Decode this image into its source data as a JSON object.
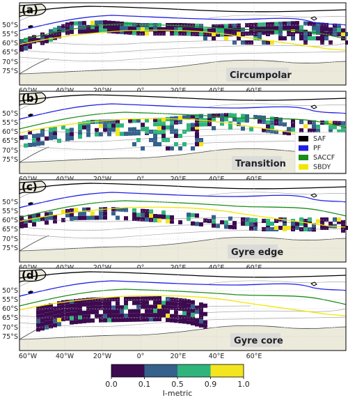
{
  "xticks": [
    "60°W",
    "40°W",
    "20°W",
    "0°",
    "20°E",
    "40°E",
    "60°E"
  ],
  "yticks": [
    "50°S",
    "55°S",
    "60°S",
    "65°S",
    "70°S",
    "75°S"
  ],
  "panels": [
    {
      "letter": "(a)",
      "region": "Circumpolar"
    },
    {
      "letter": "(b)",
      "region": "Transition"
    },
    {
      "letter": "(c)",
      "region": "Gyre edge"
    },
    {
      "letter": "(d)",
      "region": "Gyre core"
    }
  ],
  "legend": [
    {
      "label": "SAF",
      "color": "#000000"
    },
    {
      "label": "PF",
      "color": "#1f1fe6"
    },
    {
      "label": "SACCF",
      "color": "#1a8c1a"
    },
    {
      "label": "SBDY",
      "color": "#f2e600"
    }
  ],
  "colorbar": {
    "title": "I-metric",
    "ticks": [
      "0.0",
      "0.1",
      "0.5",
      "0.9",
      "1.0"
    ],
    "bins": [
      {
        "from": 0.0,
        "to": 0.1,
        "color": "#3d0a4f"
      },
      {
        "from": 0.1,
        "to": 0.5,
        "color": "#35618c"
      },
      {
        "from": 0.5,
        "to": 0.9,
        "color": "#2fb47c"
      },
      {
        "from": 0.9,
        "to": 1.0,
        "color": "#f3e51e"
      }
    ]
  },
  "colors": {
    "land": "#eceadb",
    "ocean": "#ffffff",
    "contour": "#a8a8a8"
  }
}
